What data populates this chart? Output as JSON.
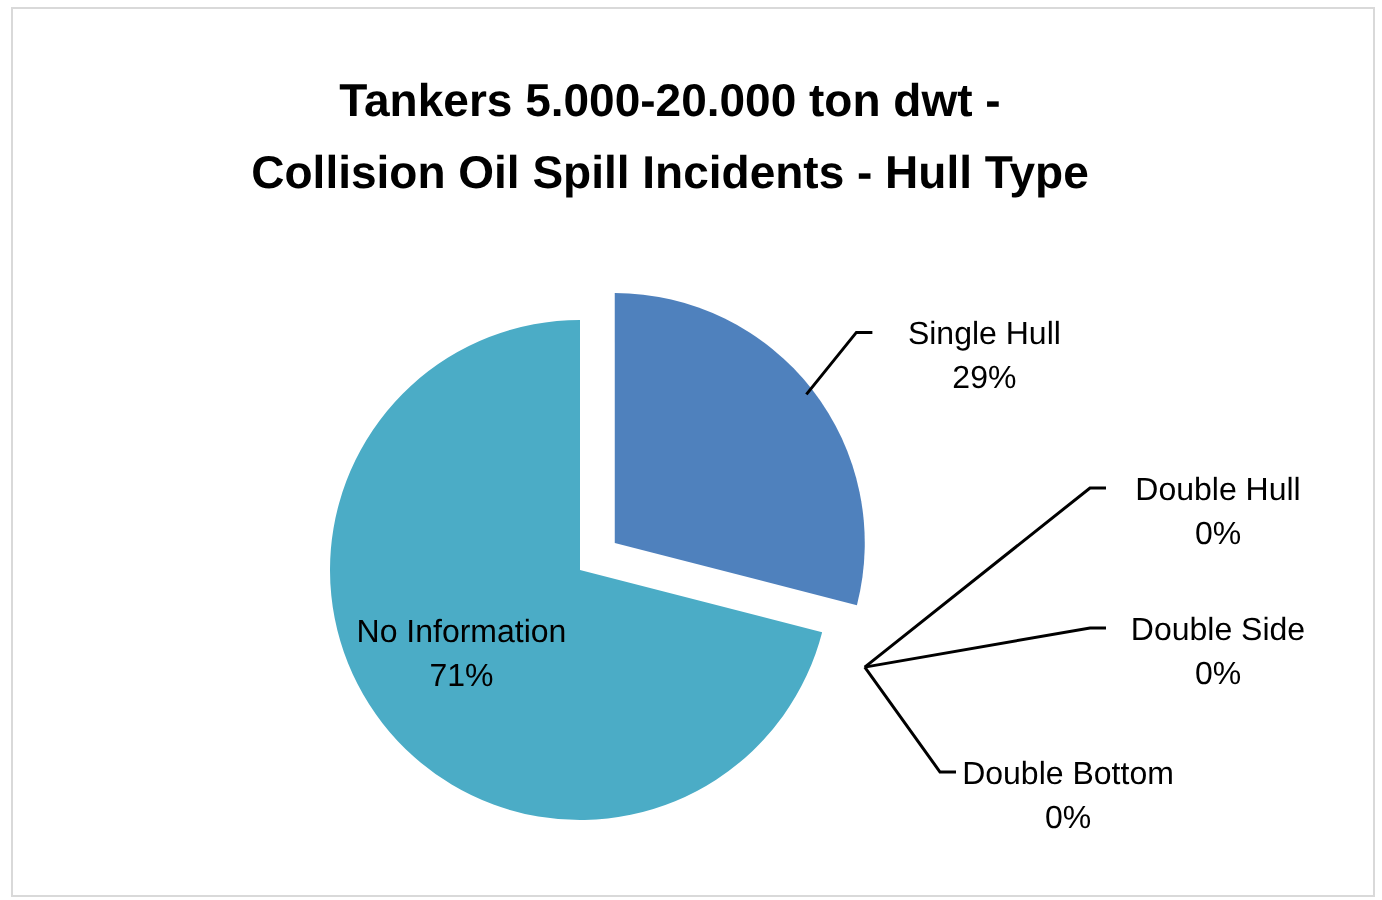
{
  "chart_data": {
    "type": "pie",
    "title": "Tankers 5.000-20.000 ton dwt -\nCollision Oil Spill Incidents - Hull Type",
    "categories": [
      "Single Hull",
      "Double Hull",
      "Double Side",
      "Double Bottom",
      "No Information"
    ],
    "values": [
      29,
      0,
      0,
      0,
      71
    ],
    "value_labels": [
      "29%",
      "0%",
      "0%",
      "0%",
      "71%"
    ],
    "colors": [
      "#4f81bd",
      "#3b2a44",
      "#9bbb59",
      "#8064a2",
      "#4bacc6"
    ]
  }
}
